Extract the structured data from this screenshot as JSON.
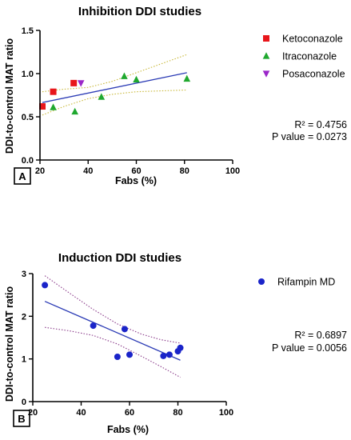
{
  "chart_data": [
    {
      "type": "scatter",
      "panel": "A",
      "title": "Inhibition DDI studies",
      "xlabel": "Fabs (%)",
      "ylabel": "DDI-to-control MAT ratio",
      "xlim": [
        20,
        100
      ],
      "ylim": [
        0,
        1.5
      ],
      "xticks": [
        20,
        40,
        60,
        80,
        100
      ],
      "yticks": [
        0,
        0.5,
        1.0,
        1.5
      ],
      "ytick_labels": [
        "0.0",
        "0.5",
        "1.0",
        "1.5"
      ],
      "series": [
        {
          "name": "Ketoconazole",
          "marker": "square",
          "color": "#e8161b",
          "x": [
            21,
            25.5,
            34
          ],
          "y": [
            0.62,
            0.79,
            0.89
          ]
        },
        {
          "name": "Itraconazole",
          "marker": "triangle-up",
          "color": "#1fa82e",
          "x": [
            25.5,
            34.5,
            45.5,
            55,
            60,
            81
          ],
          "y": [
            0.61,
            0.56,
            0.73,
            0.97,
            0.93,
            0.94
          ]
        },
        {
          "name": "Posaconazole",
          "marker": "triangle-down",
          "color": "#9b27c9",
          "x": [
            37
          ],
          "y": [
            0.89
          ]
        }
      ],
      "regression": {
        "x": [
          21,
          81
        ],
        "y": [
          0.665,
          1.01
        ],
        "color": "#2b3bb5"
      },
      "confidence_band": {
        "x": [
          21,
          30,
          40,
          50,
          60,
          70,
          81
        ],
        "upper": [
          0.79,
          0.82,
          0.84,
          0.91,
          1.01,
          1.11,
          1.22
        ],
        "lower": [
          0.52,
          0.62,
          0.71,
          0.76,
          0.79,
          0.8,
          0.81
        ],
        "color": "#c9b93a"
      },
      "stats": {
        "r2": "R² = 0.4756",
        "p": "P value = 0.0273"
      },
      "legend_position": "right"
    },
    {
      "type": "scatter",
      "panel": "B",
      "title": "Induction DDI studies",
      "xlabel": "Fabs (%)",
      "ylabel": "DDI-to-control MAT ratio",
      "xlim": [
        20,
        100
      ],
      "ylim": [
        0,
        3
      ],
      "xticks": [
        20,
        40,
        60,
        80,
        100
      ],
      "yticks": [
        0,
        1,
        2,
        3
      ],
      "ytick_labels": [
        "0",
        "1",
        "2",
        "3"
      ],
      "series": [
        {
          "name": "Rifampin MD",
          "marker": "circle",
          "color": "#1a24c9",
          "x": [
            25,
            45,
            55,
            58,
            60,
            74,
            76.5,
            80,
            81
          ],
          "y": [
            2.73,
            1.78,
            1.05,
            1.7,
            1.1,
            1.07,
            1.1,
            1.18,
            1.26
          ]
        }
      ],
      "regression": {
        "x": [
          25,
          81
        ],
        "y": [
          2.35,
          0.97
        ],
        "color": "#2b3bb5"
      },
      "confidence_band": {
        "x": [
          25,
          35,
          45,
          55,
          65,
          73,
          81
        ],
        "upper": [
          2.95,
          2.55,
          2.16,
          1.82,
          1.58,
          1.45,
          1.37
        ],
        "lower": [
          1.74,
          1.66,
          1.55,
          1.35,
          1.06,
          0.82,
          0.57
        ],
        "color": "#8a3a8a"
      },
      "stats": {
        "r2": "R² = 0.6897",
        "p": "P value = 0.0056"
      },
      "legend_position": "right"
    }
  ]
}
